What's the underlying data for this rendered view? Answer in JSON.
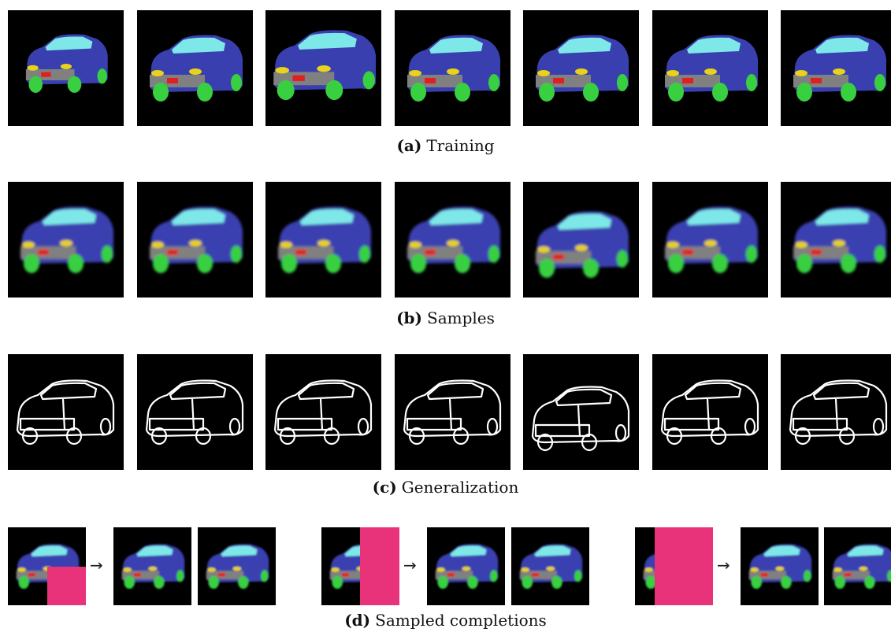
{
  "figure": {
    "captions": [
      {
        "label": "(a)",
        "text": "Training"
      },
      {
        "label": "(b)",
        "text": "Samples"
      },
      {
        "label": "(c)",
        "text": "Generalization"
      },
      {
        "label": "(d)",
        "text": "Sampled completions"
      }
    ],
    "arrow_glyph": "→",
    "colors": {
      "body": "#3a3fb0",
      "window": "#7ee8e8",
      "bumper": "#808080",
      "light": "#e8d21a",
      "plate": "#e02020",
      "wheel": "#38d040",
      "mask": "#e8327a",
      "edge": "#ffffff",
      "background": "#000000"
    }
  }
}
